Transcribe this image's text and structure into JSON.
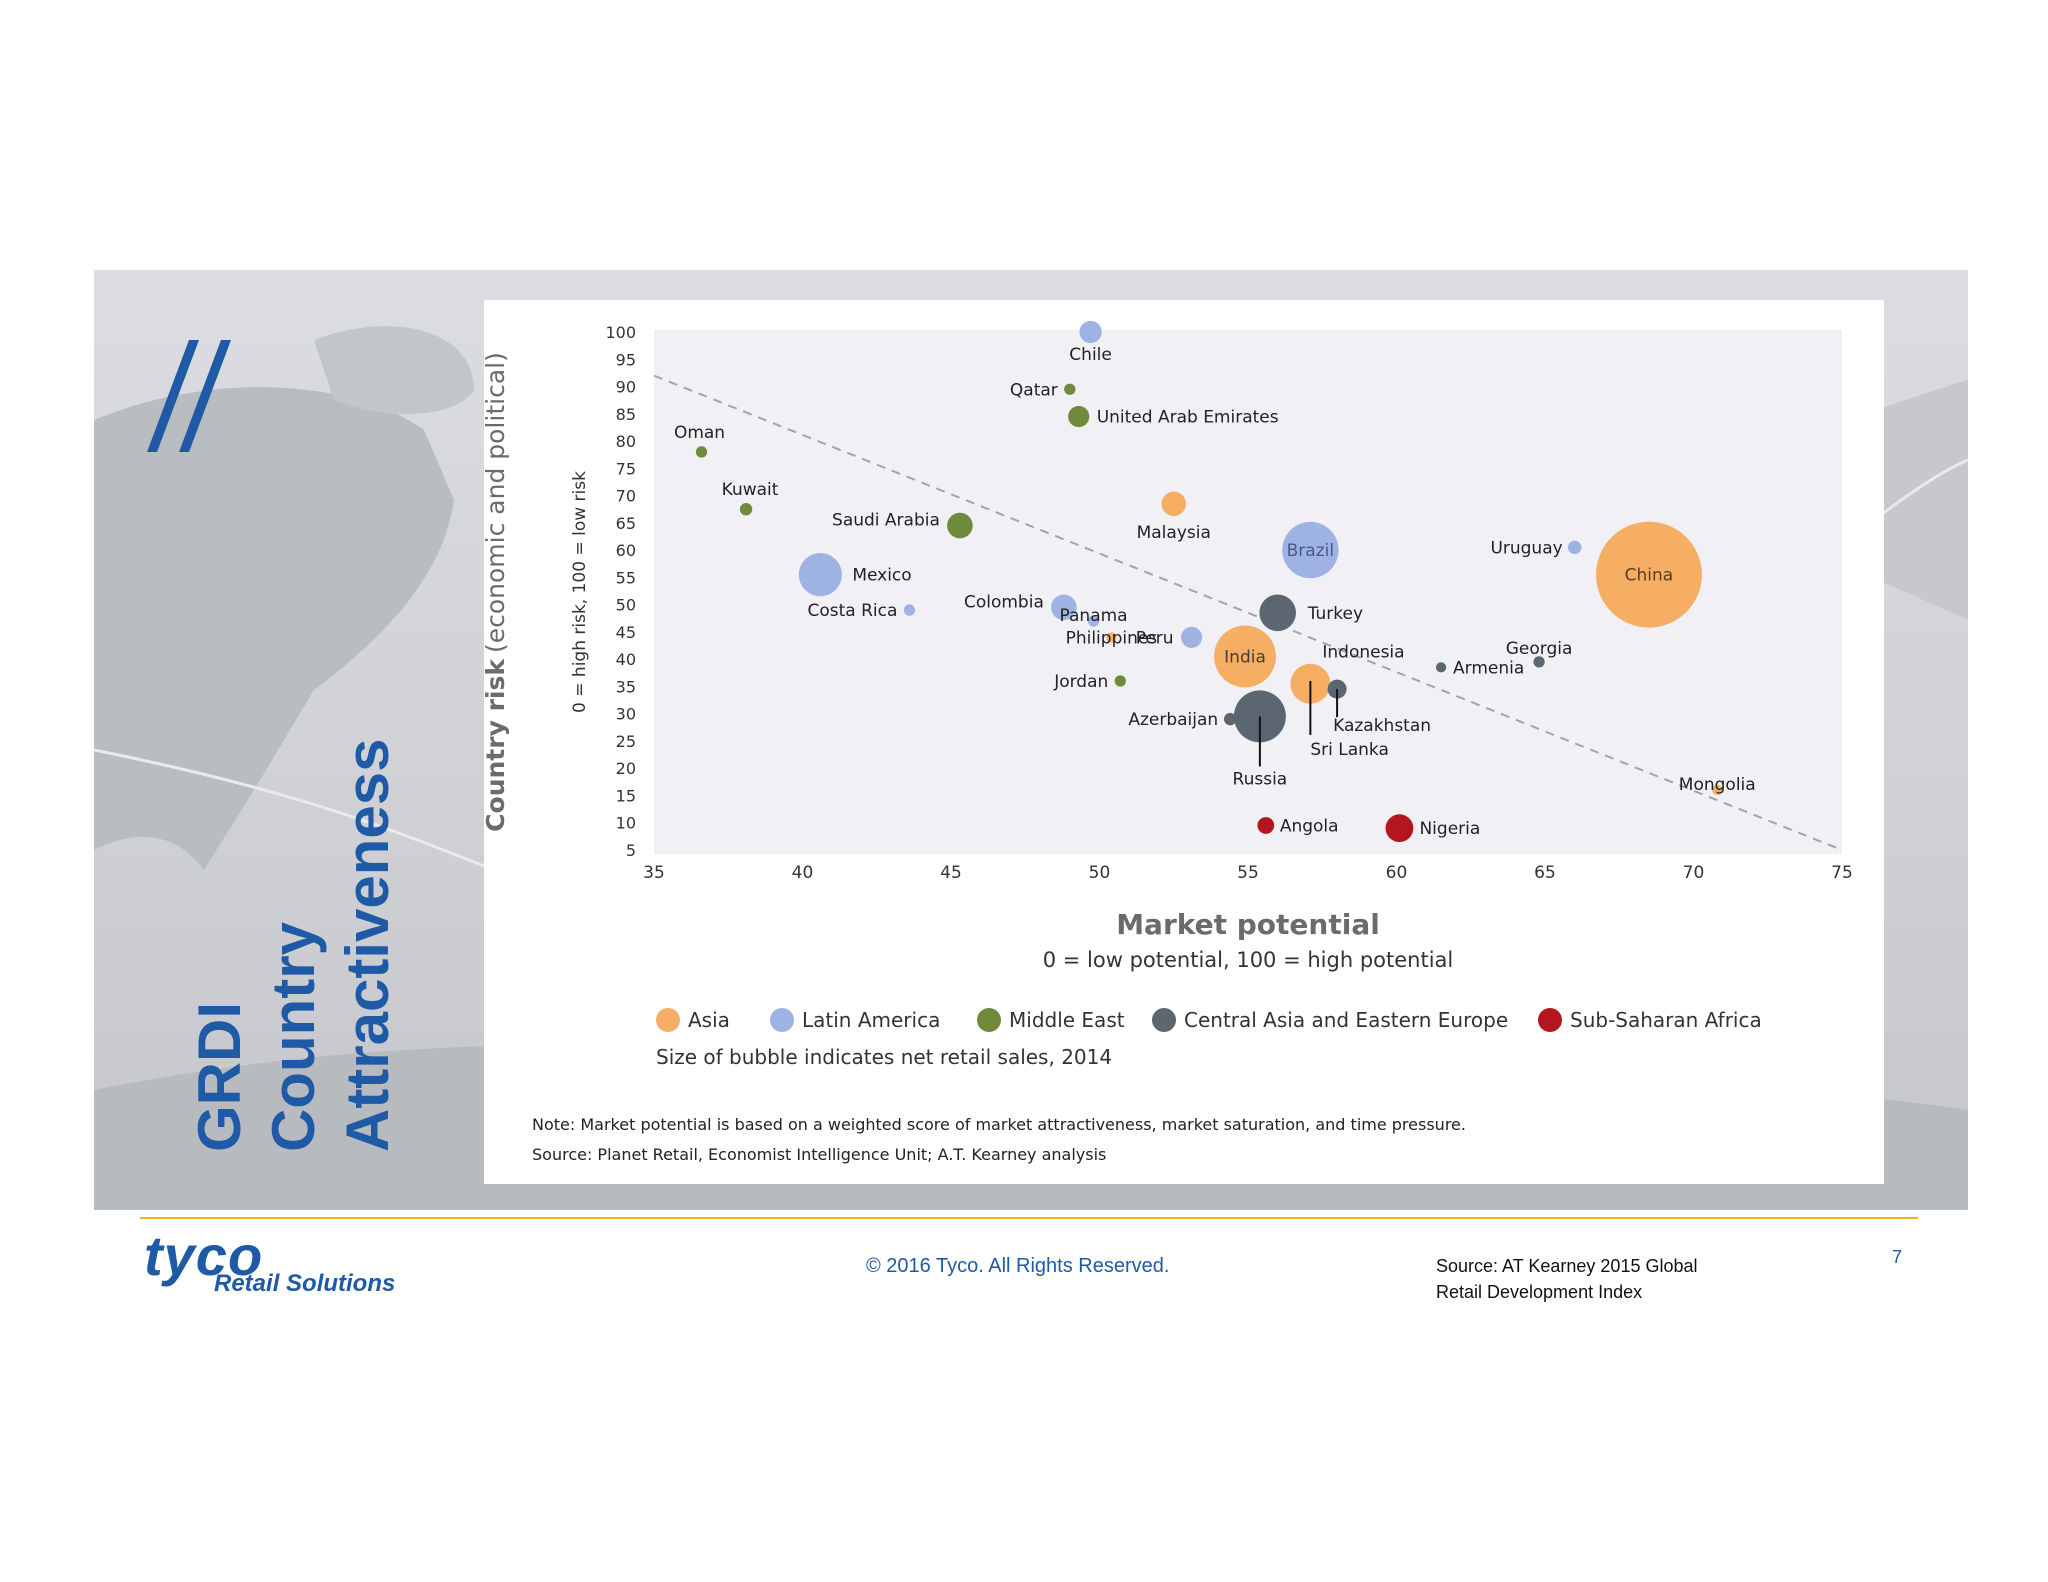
{
  "slide": {
    "title_lines": [
      "GRDI",
      "Country",
      "Attractiveness"
    ],
    "footer": {
      "logo_main": "tyco",
      "logo_sub": "Retail Solutions",
      "copyright": "© 2016 Tyco. All Rights Reserved.",
      "source_line1": "Source: AT Kearney 2015 Global",
      "source_line2": "Retail Development Index",
      "page_number": "7"
    },
    "colors": {
      "brand_blue": "#1f5aa6",
      "rule": "#f0b323"
    }
  },
  "chart_data": {
    "type": "scatter",
    "subtype": "bubble",
    "xlabel": "Market potential",
    "xlabel_sub": "0 = low potential, 100 = high potential",
    "ylabel": "Country risk",
    "ylabel_suffix": "(economic and political)",
    "ylabel_sub": "0 = high risk, 100 = low risk",
    "xlim": [
      35,
      75
    ],
    "ylim": [
      5,
      100
    ],
    "xticks": [
      "35",
      "40",
      "45",
      "50",
      "55",
      "60",
      "65",
      "70",
      "75"
    ],
    "yticks": [
      "100",
      "95",
      "90",
      "85",
      "80",
      "75",
      "70",
      "65",
      "60",
      "55",
      "50",
      "45",
      "40",
      "35",
      "30",
      "25",
      "20",
      "15",
      "10",
      "5"
    ],
    "trend_line": {
      "from": [
        35,
        92
      ],
      "to": [
        75,
        5
      ],
      "style": "dashed"
    },
    "regions": [
      {
        "key": "asia",
        "name": "Asia",
        "color": "#f5ae64"
      },
      {
        "key": "latam",
        "name": "Latin America",
        "color": "#9eb3e3"
      },
      {
        "key": "me",
        "name": "Middle East",
        "color": "#6f8a3a"
      },
      {
        "key": "caee",
        "name": "Central Asia and Eastern Europe",
        "color": "#5b6670"
      },
      {
        "key": "ssa",
        "name": "Sub-Saharan Africa",
        "color": "#b3171d"
      }
    ],
    "size_note": "Size of bubble indicates net retail sales, 2014",
    "note": "Note: Market potential is based on a weighted score of market attractiveness, market saturation, and time pressure.",
    "source": "Source: Planet Retail, Economist Intelligence Unit; A.T. Kearney analysis",
    "points": [
      {
        "name": "Chile",
        "x": 49.7,
        "y": 100,
        "region": "latam",
        "size": 1.3
      },
      {
        "name": "Qatar",
        "x": 49.0,
        "y": 89.5,
        "region": "me",
        "size": 0.3
      },
      {
        "name": "United Arab Emirates",
        "x": 49.3,
        "y": 84.5,
        "region": "me",
        "size": 1.2
      },
      {
        "name": "Oman",
        "x": 36.6,
        "y": 78,
        "region": "me",
        "size": 0.3
      },
      {
        "name": "Kuwait",
        "x": 38.1,
        "y": 67.5,
        "region": "me",
        "size": 0.4
      },
      {
        "name": "Saudi Arabia",
        "x": 45.3,
        "y": 64.5,
        "region": "me",
        "size": 1.6
      },
      {
        "name": "Malaysia",
        "x": 52.5,
        "y": 68.5,
        "region": "asia",
        "size": 1.5
      },
      {
        "name": "Brazil",
        "x": 57.1,
        "y": 60,
        "region": "latam",
        "size": 4.4
      },
      {
        "name": "Mexico",
        "x": 40.6,
        "y": 55.5,
        "region": "latam",
        "size": 3.2
      },
      {
        "name": "Costa Rica",
        "x": 43.6,
        "y": 49,
        "region": "latam",
        "size": 0.3
      },
      {
        "name": "Colombia",
        "x": 48.8,
        "y": 49.5,
        "region": "latam",
        "size": 1.6
      },
      {
        "name": "Panama",
        "x": 49.8,
        "y": 47,
        "region": "latam",
        "size": 0.3
      },
      {
        "name": "Peru",
        "x": 53.1,
        "y": 44,
        "region": "latam",
        "size": 1.2
      },
      {
        "name": "Turkey",
        "x": 56.0,
        "y": 48.5,
        "region": "caee",
        "size": 2.6
      },
      {
        "name": "India",
        "x": 54.9,
        "y": 40.5,
        "region": "asia",
        "size": 4.9
      },
      {
        "name": "Philippines",
        "x": 50.4,
        "y": 44,
        "region": "asia",
        "size": 0.2
      },
      {
        "name": "Indonesia",
        "x": 57.1,
        "y": 35.5,
        "region": "asia",
        "size": 2.9
      },
      {
        "name": "Jordan",
        "x": 50.7,
        "y": 36,
        "region": "me",
        "size": 0.3
      },
      {
        "name": "Azerbaijan",
        "x": 54.4,
        "y": 29,
        "region": "caee",
        "size": 0.4
      },
      {
        "name": "Russia",
        "x": 55.4,
        "y": 29.5,
        "region": "caee",
        "size": 4.0
      },
      {
        "name": "Kazakhstan",
        "x": 58.0,
        "y": 34.5,
        "region": "caee",
        "size": 1.0
      },
      {
        "name": "Sri Lanka",
        "x": 57.1,
        "y": 36,
        "region": "asia",
        "size": 0.3
      },
      {
        "name": "Armenia",
        "x": 61.5,
        "y": 38.5,
        "region": "caee",
        "size": 0.2
      },
      {
        "name": "Georgia",
        "x": 64.8,
        "y": 39.5,
        "region": "caee",
        "size": 0.3
      },
      {
        "name": "Uruguay",
        "x": 66.0,
        "y": 60.5,
        "region": "latam",
        "size": 0.5
      },
      {
        "name": "China",
        "x": 68.5,
        "y": 55.5,
        "region": "asia",
        "size": 8.9
      },
      {
        "name": "Mongolia",
        "x": 70.8,
        "y": 16,
        "region": "asia",
        "size": 0.2
      },
      {
        "name": "Angola",
        "x": 55.6,
        "y": 9.5,
        "region": "ssa",
        "size": 0.8
      },
      {
        "name": "Nigeria",
        "x": 60.1,
        "y": 9,
        "region": "ssa",
        "size": 1.8
      }
    ]
  }
}
